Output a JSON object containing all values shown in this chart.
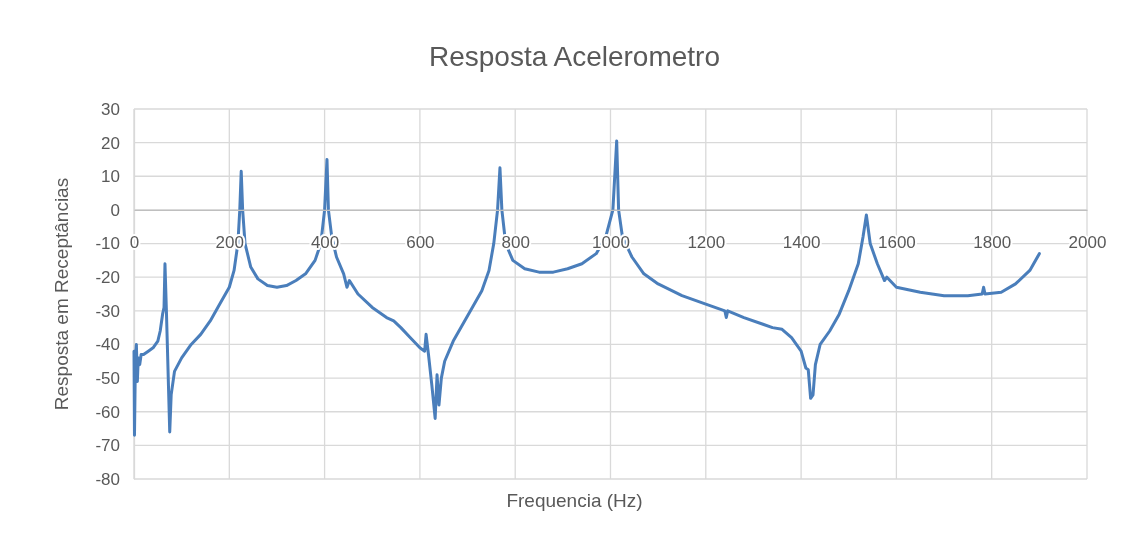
{
  "chart_data": {
    "type": "line",
    "title": "Resposta Acelerometro",
    "xlabel": "Frequencia (Hz)",
    "ylabel": "Resposta em Receptâncias",
    "xlim": [
      0,
      2000
    ],
    "xticks": [
      0,
      200,
      400,
      600,
      800,
      1000,
      1200,
      1400,
      1600,
      1800,
      2000
    ],
    "ylim": [
      -80,
      30
    ],
    "yticks": [
      -80,
      -70,
      -60,
      -50,
      -40,
      -30,
      -20,
      -10,
      0,
      10,
      20,
      30
    ],
    "grid": true,
    "series": [
      {
        "color": "#4a7ebb",
        "x": [
          0,
          1,
          3,
          5,
          7,
          9,
          12,
          15,
          20,
          30,
          40,
          50,
          55,
          60,
          63,
          65,
          68,
          75,
          78,
          85,
          100,
          120,
          140,
          160,
          180,
          200,
          210,
          218,
          222,
          225,
          228,
          233,
          245,
          260,
          280,
          300,
          320,
          340,
          360,
          380,
          392,
          400,
          405,
          408,
          415,
          425,
          440,
          447,
          452,
          470,
          500,
          530,
          545,
          560,
          580,
          600,
          610,
          613,
          618,
          625,
          632,
          636,
          640,
          645,
          652,
          670,
          690,
          710,
          730,
          745,
          755,
          763,
          768,
          772,
          780,
          795,
          820,
          850,
          880,
          910,
          940,
          970,
          990,
          1005,
          1013,
          1017,
          1025,
          1045,
          1070,
          1100,
          1150,
          1200,
          1240,
          1243,
          1246,
          1280,
          1320,
          1340,
          1360,
          1380,
          1400,
          1410,
          1415,
          1420,
          1425,
          1430,
          1440,
          1460,
          1480,
          1500,
          1520,
          1530,
          1537,
          1545,
          1560,
          1575,
          1580,
          1600,
          1650,
          1700,
          1750,
          1780,
          1783,
          1786,
          1820,
          1850,
          1880,
          1900
        ],
        "values": [
          -42,
          -67,
          -44,
          -40,
          -51,
          -44,
          -46,
          -43,
          -43,
          -42,
          -41,
          -39,
          -36,
          -31,
          -29,
          -16,
          -30,
          -66,
          -55,
          -48,
          -44,
          -40,
          -37,
          -33,
          -28,
          -23,
          -18,
          -10,
          0,
          11.5,
          0,
          -10,
          -17,
          -20.5,
          -22.5,
          -23,
          -22.5,
          -21,
          -19,
          -15,
          -10,
          0,
          15,
          0,
          -8,
          -14,
          -19,
          -23,
          -21,
          -25,
          -29,
          -32,
          -33,
          -35,
          -38,
          -41,
          -42,
          -37,
          -43,
          -52,
          -62,
          -49,
          -58,
          -50,
          -45,
          -39,
          -34,
          -29,
          -24,
          -18,
          -10,
          0,
          12.5,
          0,
          -10,
          -15,
          -17.5,
          -18.5,
          -18.5,
          -17.5,
          -16,
          -13,
          -8,
          0,
          20.5,
          0,
          -8,
          -14,
          -19,
          -22,
          -25.5,
          -28,
          -30,
          -32,
          -30,
          -32,
          -34,
          -35,
          -35.5,
          -38,
          -42,
          -47,
          -47.5,
          -56,
          -55,
          -46,
          -40,
          -36,
          -31,
          -24,
          -16,
          -8,
          -1.5,
          -10,
          -16,
          -21,
          -20,
          -23,
          -24.5,
          -25.5,
          -25.5,
          -25,
          -23,
          -25,
          -24.5,
          -22,
          -18,
          -13
        ]
      }
    ]
  }
}
